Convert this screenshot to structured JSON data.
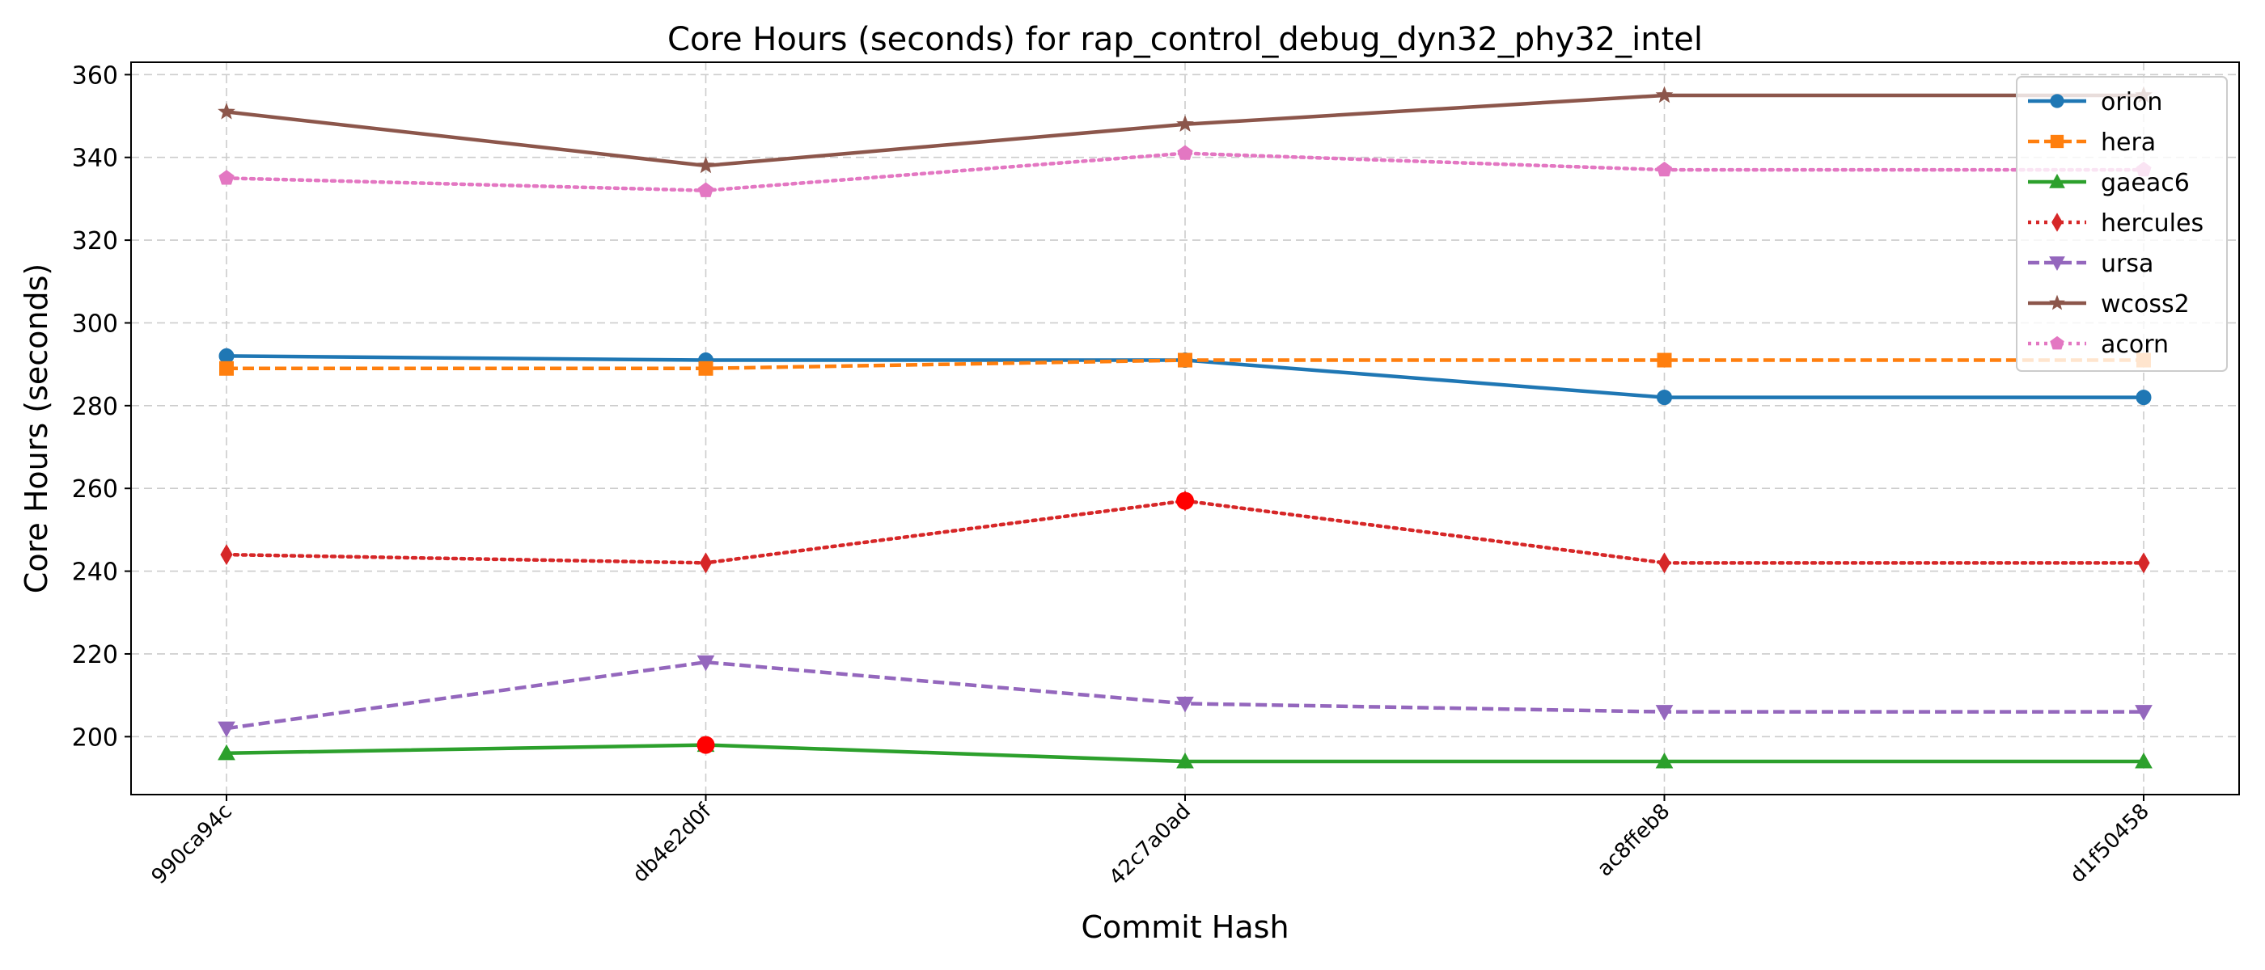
{
  "chart_data": {
    "type": "line",
    "title": "Core Hours (seconds) for rap_control_debug_dyn32_phy32_intel",
    "xlabel": "Commit Hash",
    "ylabel": "Core Hours (seconds)",
    "categories": [
      "990ca94c",
      "db4e2d0f",
      "42c7a0ad",
      "ac8ffeb8",
      "d1f50458"
    ],
    "ylim": [
      186,
      363
    ],
    "yticks": [
      200,
      220,
      240,
      260,
      280,
      300,
      320,
      340,
      360
    ],
    "grid": true,
    "legend_position": "top-right",
    "series": [
      {
        "name": "orion",
        "color": "#1f77b4",
        "linestyle": "solid",
        "marker": "circle",
        "values": [
          292,
          291,
          291,
          282,
          282
        ]
      },
      {
        "name": "hera",
        "color": "#ff7f0e",
        "linestyle": "dashed",
        "marker": "square",
        "values": [
          289,
          289,
          291,
          291,
          291
        ]
      },
      {
        "name": "gaeac6",
        "color": "#2ca02c",
        "linestyle": "solid",
        "marker": "triangle-up",
        "values": [
          196,
          198,
          194,
          194,
          194
        ]
      },
      {
        "name": "hercules",
        "color": "#d62728",
        "linestyle": "dotted",
        "marker": "diamond",
        "values": [
          244,
          242,
          257,
          242,
          242
        ]
      },
      {
        "name": "ursa",
        "color": "#9467bd",
        "linestyle": "dashed",
        "marker": "triangle-down",
        "values": [
          202,
          218,
          208,
          206,
          206
        ]
      },
      {
        "name": "wcoss2",
        "color": "#8c564b",
        "linestyle": "solid",
        "marker": "star",
        "values": [
          351,
          338,
          348,
          355,
          355
        ]
      },
      {
        "name": "acorn",
        "color": "#e377c2",
        "linestyle": "dotted",
        "marker": "pentagon",
        "values": [
          335,
          332,
          341,
          337,
          337
        ]
      }
    ],
    "highlighted_points": [
      {
        "series": "hercules",
        "category": "42c7a0ad",
        "value": 257,
        "color": "#ff0000"
      },
      {
        "series": "gaeac6",
        "category": "db4e2d0f",
        "value": 198,
        "color": "#ff0000"
      }
    ]
  }
}
